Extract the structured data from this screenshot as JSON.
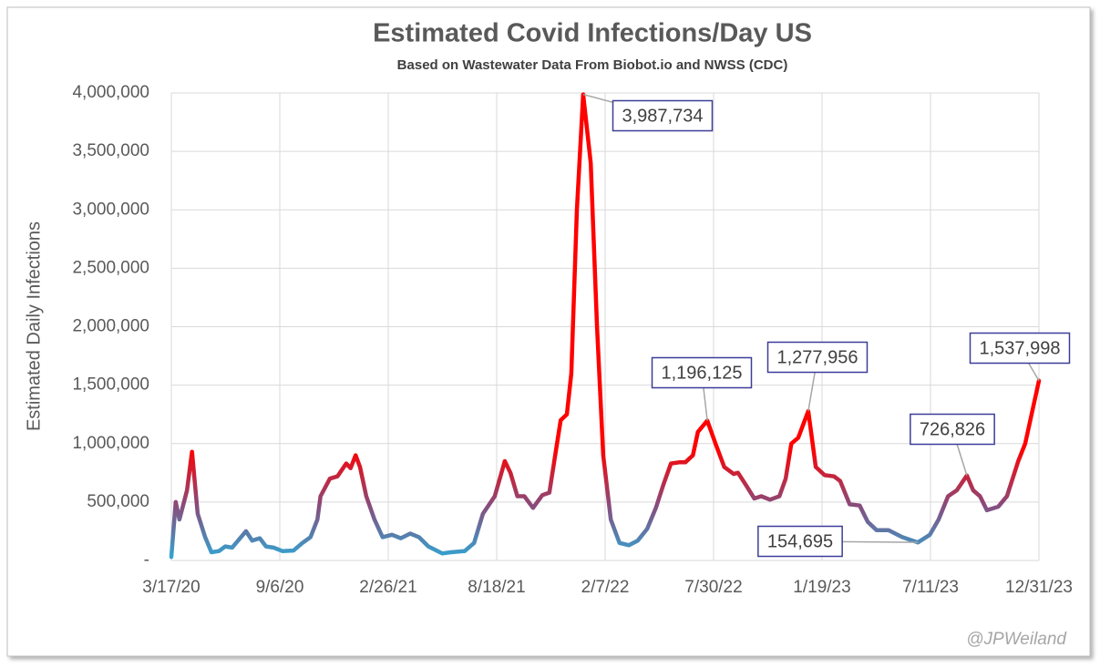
{
  "chart_data": {
    "type": "line",
    "title": "Estimated Covid Infections/Day US",
    "subtitle": "Based on Wastewater Data From Biobot.io and NWSS (CDC)",
    "ylabel": "Estimated Daily Infections",
    "watermark": "@JPWeiland",
    "xlim": [
      "2020-03-17",
      "2023-12-31"
    ],
    "xticks": [
      {
        "value": "2020-03-17",
        "label": "3/17/20"
      },
      {
        "value": "2020-09-06",
        "label": "9/6/20"
      },
      {
        "value": "2021-02-26",
        "label": "2/26/21"
      },
      {
        "value": "2021-08-18",
        "label": "8/18/21"
      },
      {
        "value": "2022-02-07",
        "label": "2/7/22"
      },
      {
        "value": "2022-07-30",
        "label": "7/30/22"
      },
      {
        "value": "2023-01-19",
        "label": "1/19/23"
      },
      {
        "value": "2023-07-11",
        "label": "7/11/23"
      },
      {
        "value": "2023-12-31",
        "label": "12/31/23"
      }
    ],
    "ylim": [
      0,
      4000000
    ],
    "yticks": [
      {
        "value": 0,
        "label": "-"
      },
      {
        "value": 500000,
        "label": "500,000"
      },
      {
        "value": 1000000,
        "label": "1,000,000"
      },
      {
        "value": 1500000,
        "label": "1,500,000"
      },
      {
        "value": 2000000,
        "label": "2,000,000"
      },
      {
        "value": 2500000,
        "label": "2,500,000"
      },
      {
        "value": 3000000,
        "label": "3,000,000"
      },
      {
        "value": 3500000,
        "label": "3,500,000"
      },
      {
        "value": 4000000,
        "label": "4,000,000"
      }
    ],
    "grid": true,
    "color_scale": [
      "#2ea9d6",
      "#8a4a7a",
      "#ff0000"
    ],
    "x": [
      "2020-03-17",
      "2020-03-24",
      "2020-03-30",
      "2020-04-11",
      "2020-04-19",
      "2020-04-28",
      "2020-05-10",
      "2020-05-20",
      "2020-06-01",
      "2020-06-11",
      "2020-06-22",
      "2020-07-03",
      "2020-07-14",
      "2020-07-24",
      "2020-08-05",
      "2020-08-15",
      "2020-08-27",
      "2020-09-10",
      "2020-09-28",
      "2020-10-12",
      "2020-10-25",
      "2020-11-05",
      "2020-11-10",
      "2020-11-25",
      "2020-12-07",
      "2020-12-21",
      "2020-12-28",
      "2021-01-05",
      "2021-01-12",
      "2021-01-22",
      "2021-02-04",
      "2021-02-17",
      "2021-03-04",
      "2021-03-18",
      "2021-04-02",
      "2021-04-16",
      "2021-05-01",
      "2021-05-23",
      "2021-06-06",
      "2021-06-28",
      "2021-07-13",
      "2021-07-27",
      "2021-08-15",
      "2021-08-31",
      "2021-09-09",
      "2021-09-20",
      "2021-10-01",
      "2021-10-15",
      "2021-10-30",
      "2021-11-10",
      "2021-11-28",
      "2021-12-08",
      "2021-12-15",
      "2021-12-24",
      "2022-01-03",
      "2022-01-15",
      "2022-01-25",
      "2022-02-04",
      "2022-02-16",
      "2022-03-02",
      "2022-03-17",
      "2022-03-31",
      "2022-04-15",
      "2022-04-29",
      "2022-05-11",
      "2022-05-23",
      "2022-06-05",
      "2022-06-15",
      "2022-06-27",
      "2022-07-05",
      "2022-07-20",
      "2022-08-02",
      "2022-08-16",
      "2022-08-31",
      "2022-09-07",
      "2022-09-19",
      "2022-10-03",
      "2022-10-14",
      "2022-10-28",
      "2022-11-12",
      "2022-11-22",
      "2022-12-01",
      "2022-12-12",
      "2022-12-28",
      "2023-01-09",
      "2023-01-23",
      "2023-02-07",
      "2023-02-17",
      "2023-03-04",
      "2023-03-20",
      "2023-04-02",
      "2023-04-16",
      "2023-05-05",
      "2023-05-27",
      "2023-06-21",
      "2023-07-10",
      "2023-07-24",
      "2023-08-08",
      "2023-08-22",
      "2023-09-07",
      "2023-09-17",
      "2023-09-28",
      "2023-10-09",
      "2023-10-27",
      "2023-11-10",
      "2023-11-28",
      "2023-12-09",
      "2023-12-31"
    ],
    "values": [
      30000,
      500000,
      350000,
      600000,
      930000,
      400000,
      200000,
      70000,
      80000,
      120000,
      110000,
      180000,
      250000,
      170000,
      190000,
      120000,
      110000,
      80000,
      85000,
      150000,
      200000,
      350000,
      550000,
      700000,
      720000,
      830000,
      790000,
      900000,
      800000,
      550000,
      350000,
      200000,
      220000,
      190000,
      230000,
      200000,
      120000,
      60000,
      70000,
      80000,
      150000,
      400000,
      550000,
      850000,
      750000,
      550000,
      550000,
      450000,
      560000,
      580000,
      1200000,
      1250000,
      1600000,
      3000000,
      3987734,
      3400000,
      2000000,
      900000,
      350000,
      150000,
      130000,
      170000,
      270000,
      450000,
      650000,
      830000,
      840000,
      840000,
      900000,
      1100000,
      1196125,
      1000000,
      800000,
      740000,
      750000,
      650000,
      530000,
      550000,
      520000,
      550000,
      700000,
      1000000,
      1050000,
      1277956,
      800000,
      730000,
      720000,
      680000,
      480000,
      470000,
      330000,
      260000,
      260000,
      200000,
      154695,
      220000,
      350000,
      550000,
      600000,
      726826,
      600000,
      550000,
      430000,
      460000,
      550000,
      850000,
      1000000,
      1537998
    ],
    "value_labels": [
      null,
      null,
      null,
      null,
      null,
      null,
      null,
      null,
      null,
      null,
      null,
      null,
      null,
      null,
      null,
      null,
      null,
      null,
      null,
      null,
      null,
      null,
      null,
      null,
      null,
      null,
      null,
      null,
      null,
      null,
      null,
      null,
      null,
      null,
      null,
      null,
      null,
      null,
      null,
      null,
      null,
      null,
      null,
      null,
      null,
      null,
      null,
      null,
      null,
      null,
      null,
      null,
      null,
      null,
      "3,987,734",
      null,
      null,
      null,
      null,
      null,
      null,
      null,
      null,
      null,
      null,
      null,
      null,
      null,
      null,
      null,
      "1,196,125",
      null,
      null,
      null,
      null,
      null,
      null,
      null,
      null,
      null,
      null,
      null,
      null,
      "1,277,956",
      null,
      null,
      null,
      null,
      null,
      null,
      null,
      null,
      null,
      null,
      "154,695",
      null,
      null,
      null,
      null,
      "726,826",
      null,
      null,
      null,
      null,
      null,
      null,
      null,
      "1,537,998"
    ]
  }
}
